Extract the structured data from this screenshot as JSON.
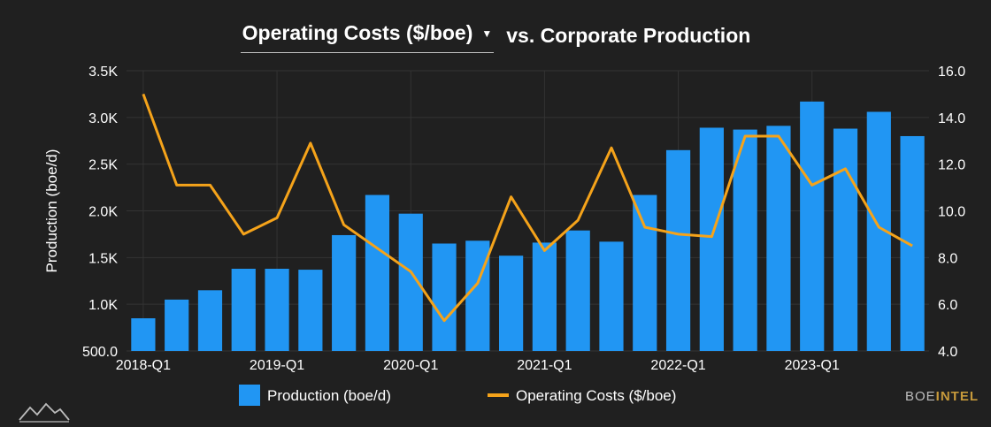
{
  "header": {
    "selected_metric": "Operating Costs ($/boe)",
    "title_suffix": "vs. Corporate Production"
  },
  "brand": {
    "part1": "BOE",
    "part2": "INTEL"
  },
  "icons": {
    "dropdown": "caret-down-icon",
    "logo": "mountain-logo-icon"
  },
  "colors": {
    "bars": "#2196f3",
    "line": "#f5a31a",
    "background": "#202020",
    "grid": "#333333"
  },
  "chart_data": {
    "type": "bar",
    "title": "Operating Costs ($/boe) vs. Corporate Production",
    "categories": [
      "2018-Q1",
      "2018-Q2",
      "2018-Q3",
      "2018-Q4",
      "2019-Q1",
      "2019-Q2",
      "2019-Q3",
      "2019-Q4",
      "2020-Q1",
      "2020-Q2",
      "2020-Q3",
      "2020-Q4",
      "2021-Q1",
      "2021-Q2",
      "2021-Q3",
      "2021-Q4",
      "2022-Q1",
      "2022-Q2",
      "2022-Q3",
      "2022-Q4",
      "2023-Q1",
      "2023-Q2",
      "2023-Q3",
      "2023-Q4"
    ],
    "x_tick_labels": [
      "2018-Q1",
      "2019-Q1",
      "2020-Q1",
      "2021-Q1",
      "2022-Q1",
      "2023-Q1"
    ],
    "series": [
      {
        "name": "Production (boe/d)",
        "type": "bar",
        "axis": "left",
        "values": [
          850,
          1050,
          1150,
          1380,
          1380,
          1370,
          1740,
          2170,
          1970,
          1650,
          1680,
          1520,
          1660,
          1790,
          1670,
          2170,
          2650,
          2890,
          2870,
          2910,
          3170,
          2880,
          3060,
          2800
        ]
      },
      {
        "name": "Operating Costs ($/boe)",
        "type": "line",
        "axis": "right",
        "values": [
          15.0,
          11.1,
          11.1,
          9.0,
          9.7,
          12.9,
          9.4,
          8.4,
          7.4,
          5.3,
          6.9,
          10.6,
          8.3,
          9.6,
          12.7,
          9.3,
          9.0,
          8.9,
          13.2,
          13.2,
          11.1,
          11.8,
          9.3,
          8.5
        ]
      }
    ],
    "ylabel": "Production (boe/d)",
    "ylim": [
      500,
      3500
    ],
    "y_tick_labels": [
      "500.0",
      "1.0K",
      "1.5K",
      "2.0K",
      "2.5K",
      "3.0K",
      "3.5K"
    ],
    "y2lim": [
      4.0,
      16.0
    ],
    "y2_tick_labels": [
      "4.0",
      "6.0",
      "8.0",
      "10.0",
      "12.0",
      "14.0",
      "16.0"
    ],
    "grid": true,
    "legend_position": "bottom-center"
  }
}
